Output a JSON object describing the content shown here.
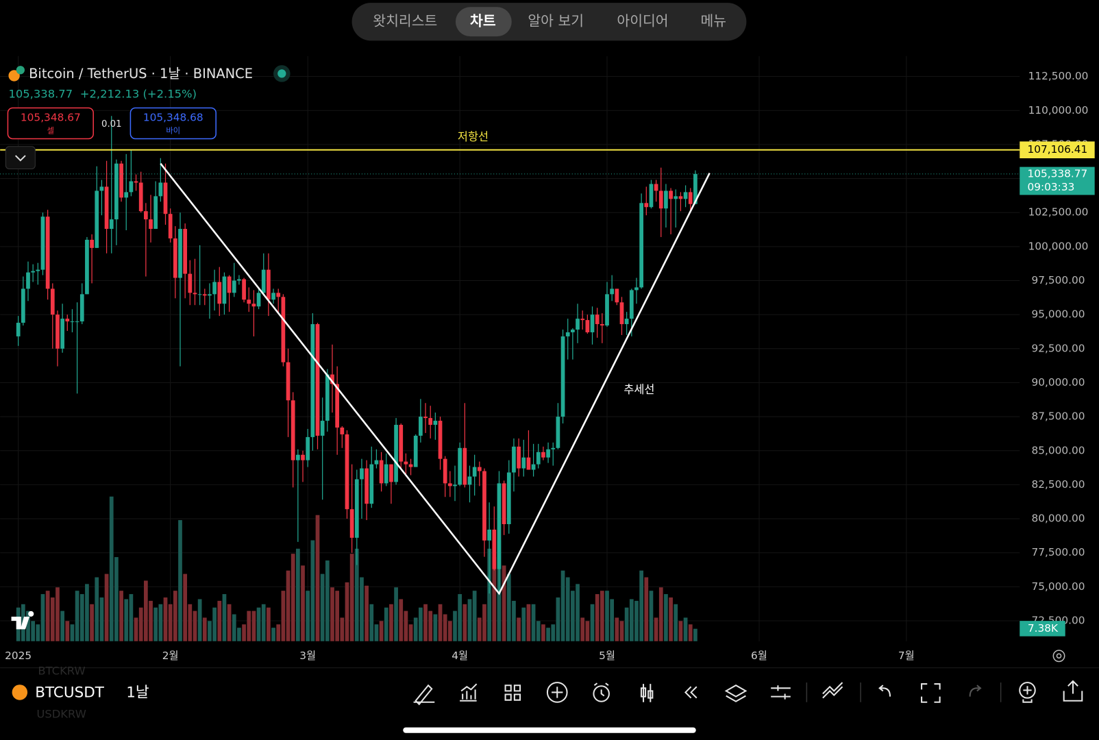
{
  "nav": {
    "tabs": [
      "왓치리스트",
      "차트",
      "알아 보기",
      "아이디어",
      "메뉴"
    ],
    "active": 1
  },
  "header": {
    "symbol": "Bitcoin / TetherUS · 1날 · BINANCE",
    "quote": "105,338.77",
    "change": "+2,212.13 (+2.15%)",
    "sell_price": "105,348.67",
    "sell_label": "셀",
    "spread": "0.01",
    "buy_price": "105,348.68",
    "buy_label": "바이"
  },
  "chart_data": {
    "type": "candlestick",
    "up_color": "#22ab94",
    "down_color": "#f23645",
    "volume_up_color": "#1c5c55",
    "volume_down_color": "#7c2c30",
    "grid": true,
    "xlim": [
      -3.7,
      204.1
    ],
    "xticks": [
      {
        "value": 0,
        "label": "2025"
      },
      {
        "value": 31,
        "label": "2월"
      },
      {
        "value": 59,
        "label": "3월"
      },
      {
        "value": 90,
        "label": "4월"
      },
      {
        "value": 120,
        "label": "5월"
      },
      {
        "value": 151,
        "label": "6월"
      },
      {
        "value": 181,
        "label": "7월"
      }
    ],
    "ylim": [
      71000,
      114000
    ],
    "yticks": [
      {
        "value": 72500,
        "label": "72,500.00"
      },
      {
        "value": 75000,
        "label": "75,000.00"
      },
      {
        "value": 77500,
        "label": "77,500.00"
      },
      {
        "value": 80000,
        "label": "80,000.00"
      },
      {
        "value": 82500,
        "label": "82,500.00"
      },
      {
        "value": 85000,
        "label": "85,000.00"
      },
      {
        "value": 87500,
        "label": "87,500.00"
      },
      {
        "value": 90000,
        "label": "90,000.00"
      },
      {
        "value": 92500,
        "label": "92,500.00"
      },
      {
        "value": 95000,
        "label": "95,000.00"
      },
      {
        "value": 97500,
        "label": "97,500.00"
      },
      {
        "value": 100000,
        "label": "100,000.00"
      },
      {
        "value": 102500,
        "label": "102,500.00"
      },
      {
        "value": 105000,
        "label": "105,000.00"
      },
      {
        "value": 107500,
        "label": "107,500.00"
      },
      {
        "value": 110000,
        "label": "110,000.00"
      },
      {
        "value": 112500,
        "label": "112,500.00"
      }
    ],
    "x": [
      0,
      1,
      2,
      3,
      4,
      5,
      6,
      7,
      8,
      9,
      10,
      11,
      12,
      13,
      14,
      15,
      16,
      17,
      18,
      19,
      20,
      21,
      22,
      23,
      24,
      25,
      26,
      27,
      28,
      29,
      30,
      31,
      32,
      33,
      34,
      35,
      36,
      37,
      38,
      39,
      40,
      41,
      42,
      43,
      44,
      45,
      46,
      47,
      48,
      49,
      50,
      51,
      52,
      53,
      54,
      55,
      56,
      57,
      58,
      59,
      60,
      61,
      62,
      63,
      64,
      65,
      66,
      67,
      68,
      69,
      70,
      71,
      72,
      73,
      74,
      75,
      76,
      77,
      78,
      79,
      80,
      81,
      82,
      83,
      84,
      85,
      86,
      87,
      88,
      89,
      90,
      91,
      92,
      93,
      94,
      95,
      96,
      97,
      98,
      99,
      100,
      101,
      102,
      103,
      104,
      105,
      106,
      107,
      108,
      109,
      110,
      111,
      112,
      113,
      114,
      115,
      116,
      117,
      118,
      119,
      120,
      121,
      122,
      123,
      124,
      125,
      126,
      127,
      128,
      129,
      130,
      131,
      132,
      133,
      134,
      135,
      136,
      137,
      138
    ],
    "open": [
      93400,
      94400,
      96900,
      98100,
      98200,
      98300,
      102200,
      96900,
      95000,
      92500,
      94700,
      94500,
      94500,
      94500,
      96500,
      100500,
      99900,
      104100,
      104400,
      101300,
      102000,
      106100,
      103600,
      104000,
      104800,
      104700,
      102600,
      102000,
      101300,
      103700,
      104700,
      102400,
      100600,
      97700,
      101300,
      98000,
      96600,
      96500,
      96500,
      96400,
      96500,
      97400,
      95800,
      97800,
      96600,
      97500,
      97600,
      96100,
      95800,
      95600,
      96600,
      98300,
      96100,
      96600,
      96300,
      91500,
      88700,
      84300,
      84700,
      84300,
      86000,
      94300,
      86100,
      87200,
      90600,
      89900,
      86700,
      86200,
      80700,
      78600,
      82900,
      83700,
      81100,
      84000,
      84300,
      82600,
      84000,
      82700,
      86900,
      84200,
      84000,
      83800,
      86100,
      87500,
      87400,
      86900,
      87200,
      84400,
      82600,
      82400,
      82500,
      85200,
      82500,
      83100,
      83800,
      83500,
      78400,
      79200,
      76300,
      82600,
      79600,
      83400,
      85300,
      83700,
      84500,
      83600,
      84000,
      84900,
      84500,
      85100,
      85200,
      87500,
      93400,
      93700,
      93900,
      94700,
      94600,
      93700,
      95000,
      94300,
      94200,
      96500,
      96900,
      95900,
      94300,
      94700,
      96800,
      97000,
      103200,
      102900,
      104600,
      104100,
      102800,
      104100,
      103500,
      103700,
      103500,
      104000,
      103126.64
    ],
    "high": [
      94900,
      97800,
      98900,
      98700,
      98800,
      102500,
      102700,
      97300,
      95300,
      95800,
      95000,
      95400,
      95900,
      97300,
      100700,
      100900,
      105900,
      104900,
      106300,
      109600,
      106400,
      106300,
      106800,
      107100,
      105300,
      105500,
      103200,
      103800,
      104800,
      106500,
      106100,
      102800,
      101500,
      102500,
      101700,
      99000,
      99100,
      100100,
      96900,
      97300,
      98300,
      98500,
      98100,
      97900,
      98800,
      97900,
      97700,
      97000,
      96800,
      97000,
      99500,
      99500,
      96900,
      96900,
      96500,
      92500,
      89300,
      85100,
      85000,
      86600,
      95100,
      94400,
      88900,
      91000,
      92800,
      91200,
      86800,
      86500,
      84000,
      83600,
      84400,
      84300,
      85300,
      85100,
      84900,
      84800,
      84000,
      87400,
      87000,
      84800,
      84400,
      86200,
      88800,
      88500,
      88300,
      87800,
      87500,
      84600,
      83500,
      83900,
      85600,
      88500,
      83900,
      84700,
      84200,
      83700,
      81200,
      80900,
      83500,
      82800,
      84300,
      85900,
      85900,
      85800,
      86500,
      85500,
      85500,
      85300,
      85600,
      85600,
      88500,
      93900,
      94700,
      94000,
      95800,
      95300,
      95000,
      95600,
      95500,
      95100,
      97400,
      97900,
      96900,
      96300,
      95200,
      96900,
      97700,
      103900,
      104400,
      104900,
      104900,
      105800,
      104600,
      104300,
      104200,
      104000,
      104500,
      104300,
      105600
    ],
    "low": [
      92700,
      94200,
      96000,
      97400,
      97200,
      97900,
      96100,
      92500,
      91200,
      92200,
      93800,
      93700,
      89200,
      94300,
      96500,
      97300,
      99900,
      102300,
      99500,
      99500,
      100100,
      103300,
      101200,
      103700,
      104100,
      102500,
      97800,
      100300,
      101300,
      103300,
      101600,
      100300,
      96200,
      91200,
      96200,
      95700,
      95700,
      95700,
      95700,
      94700,
      95300,
      94900,
      95000,
      95200,
      96300,
      97200,
      95900,
      95200,
      93400,
      95400,
      96400,
      94900,
      95800,
      95100,
      91200,
      86000,
      82300,
      78300,
      82700,
      83800,
      85000,
      85100,
      81400,
      86400,
      87800,
      84700,
      85200,
      80000,
      77500,
      76600,
      80000,
      79900,
      80800,
      83700,
      82000,
      82400,
      81100,
      82500,
      83600,
      83200,
      83200,
      83800,
      85600,
      86300,
      85900,
      85800,
      83600,
      81600,
      81600,
      81300,
      82400,
      82300,
      81200,
      81700,
      82400,
      77200,
      74500,
      76200,
      74600,
      78800,
      78900,
      82000,
      83100,
      83100,
      83600,
      83100,
      83700,
      84300,
      84100,
      83900,
      85100,
      87000,
      91700,
      91700,
      92900,
      93900,
      93600,
      92800,
      93300,
      92900,
      94100,
      96000,
      95700,
      93500,
      93500,
      93400,
      95800,
      96900,
      102300,
      102800,
      103300,
      100700,
      101400,
      100900,
      101400,
      102600,
      102900,
      102600,
      103100
    ],
    "close": [
      94400,
      96900,
      98100,
      98200,
      98300,
      102200,
      96900,
      95000,
      92500,
      94700,
      94500,
      94500,
      94500,
      96500,
      100500,
      99900,
      104100,
      104400,
      101300,
      102000,
      106100,
      103600,
      104000,
      104800,
      104700,
      102600,
      102000,
      101300,
      103700,
      104700,
      102400,
      100600,
      97700,
      101300,
      98000,
      96600,
      96500,
      96500,
      96400,
      96500,
      97400,
      95800,
      97800,
      96600,
      97500,
      97600,
      96100,
      95800,
      95600,
      96600,
      98300,
      96100,
      96600,
      96300,
      91500,
      88700,
      84300,
      84700,
      84300,
      86000,
      94300,
      86100,
      87200,
      90600,
      89900,
      86700,
      86200,
      80700,
      78600,
      82900,
      83700,
      81100,
      84000,
      84300,
      82600,
      84000,
      82700,
      86900,
      84200,
      84000,
      83800,
      86100,
      87500,
      87400,
      86900,
      87200,
      84400,
      82600,
      82400,
      82500,
      85200,
      82500,
      83100,
      83800,
      83500,
      78400,
      79200,
      76300,
      82600,
      79600,
      83400,
      85300,
      83700,
      84500,
      83600,
      84000,
      84900,
      84500,
      85100,
      85200,
      87500,
      93400,
      93700,
      93900,
      94700,
      94600,
      93700,
      95000,
      94300,
      94200,
      96500,
      96900,
      95900,
      94300,
      94700,
      96800,
      97000,
      103200,
      102900,
      104600,
      104100,
      102800,
      104100,
      103500,
      103700,
      103500,
      104000,
      103126.64,
      105338.77
    ],
    "volume": [
      20000,
      22000,
      18000,
      12000,
      10000,
      28000,
      30000,
      26000,
      32000,
      18000,
      12000,
      10000,
      30000,
      28000,
      34000,
      22000,
      38000,
      26000,
      40000,
      86000,
      50000,
      30000,
      25000,
      28000,
      14000,
      20000,
      36000,
      24000,
      20000,
      22000,
      26000,
      22000,
      30000,
      72000,
      40000,
      22000,
      18000,
      25000,
      14000,
      12000,
      20000,
      24000,
      28000,
      22000,
      16000,
      8000,
      10000,
      18000,
      18000,
      20000,
      22000,
      20000,
      8000,
      10000,
      30000,
      42000,
      52000,
      55000,
      45000,
      30000,
      60000,
      75000,
      40000,
      48000,
      32000,
      30000,
      14000,
      35000,
      52000,
      55000,
      38000,
      33000,
      22000,
      10000,
      12000,
      20000,
      22000,
      32000,
      25000,
      18000,
      10000,
      14000,
      20000,
      22000,
      18000,
      16000,
      22000,
      16000,
      12000,
      18000,
      28000,
      22000,
      25000,
      30000,
      14000,
      22000,
      55000,
      50000,
      60000,
      45000,
      40000,
      24000,
      14000,
      20000,
      22000,
      22000,
      12000,
      10000,
      8000,
      10000,
      26000,
      42000,
      38000,
      30000,
      34000,
      14000,
      12000,
      22000,
      28000,
      30000,
      30000,
      25000,
      14000,
      12000,
      20000,
      25000,
      24000,
      42000,
      38000,
      30000,
      14000,
      32000,
      28000,
      26000,
      22000,
      12000,
      14000,
      10000,
      7380
    ],
    "volume_last_label": "7.38K",
    "volume_ylim": [
      0,
      100000
    ],
    "last_price": {
      "value": 105338.77,
      "label": "105,338.77",
      "time": "09:03:33"
    },
    "resistance": {
      "value": 107106.41,
      "label": "107,106.41",
      "text": "저항선",
      "color": "#f5e642"
    },
    "trendline": {
      "x": [
        29,
        98,
        140.9
      ],
      "y": [
        106100,
        74500,
        105400
      ],
      "text": "추세선",
      "color": "#ffffff"
    }
  },
  "footer": {
    "symbol": "BTCUSDT",
    "interval": "1날",
    "ghost": [
      "BTCKRW",
      "USDKRW"
    ]
  }
}
